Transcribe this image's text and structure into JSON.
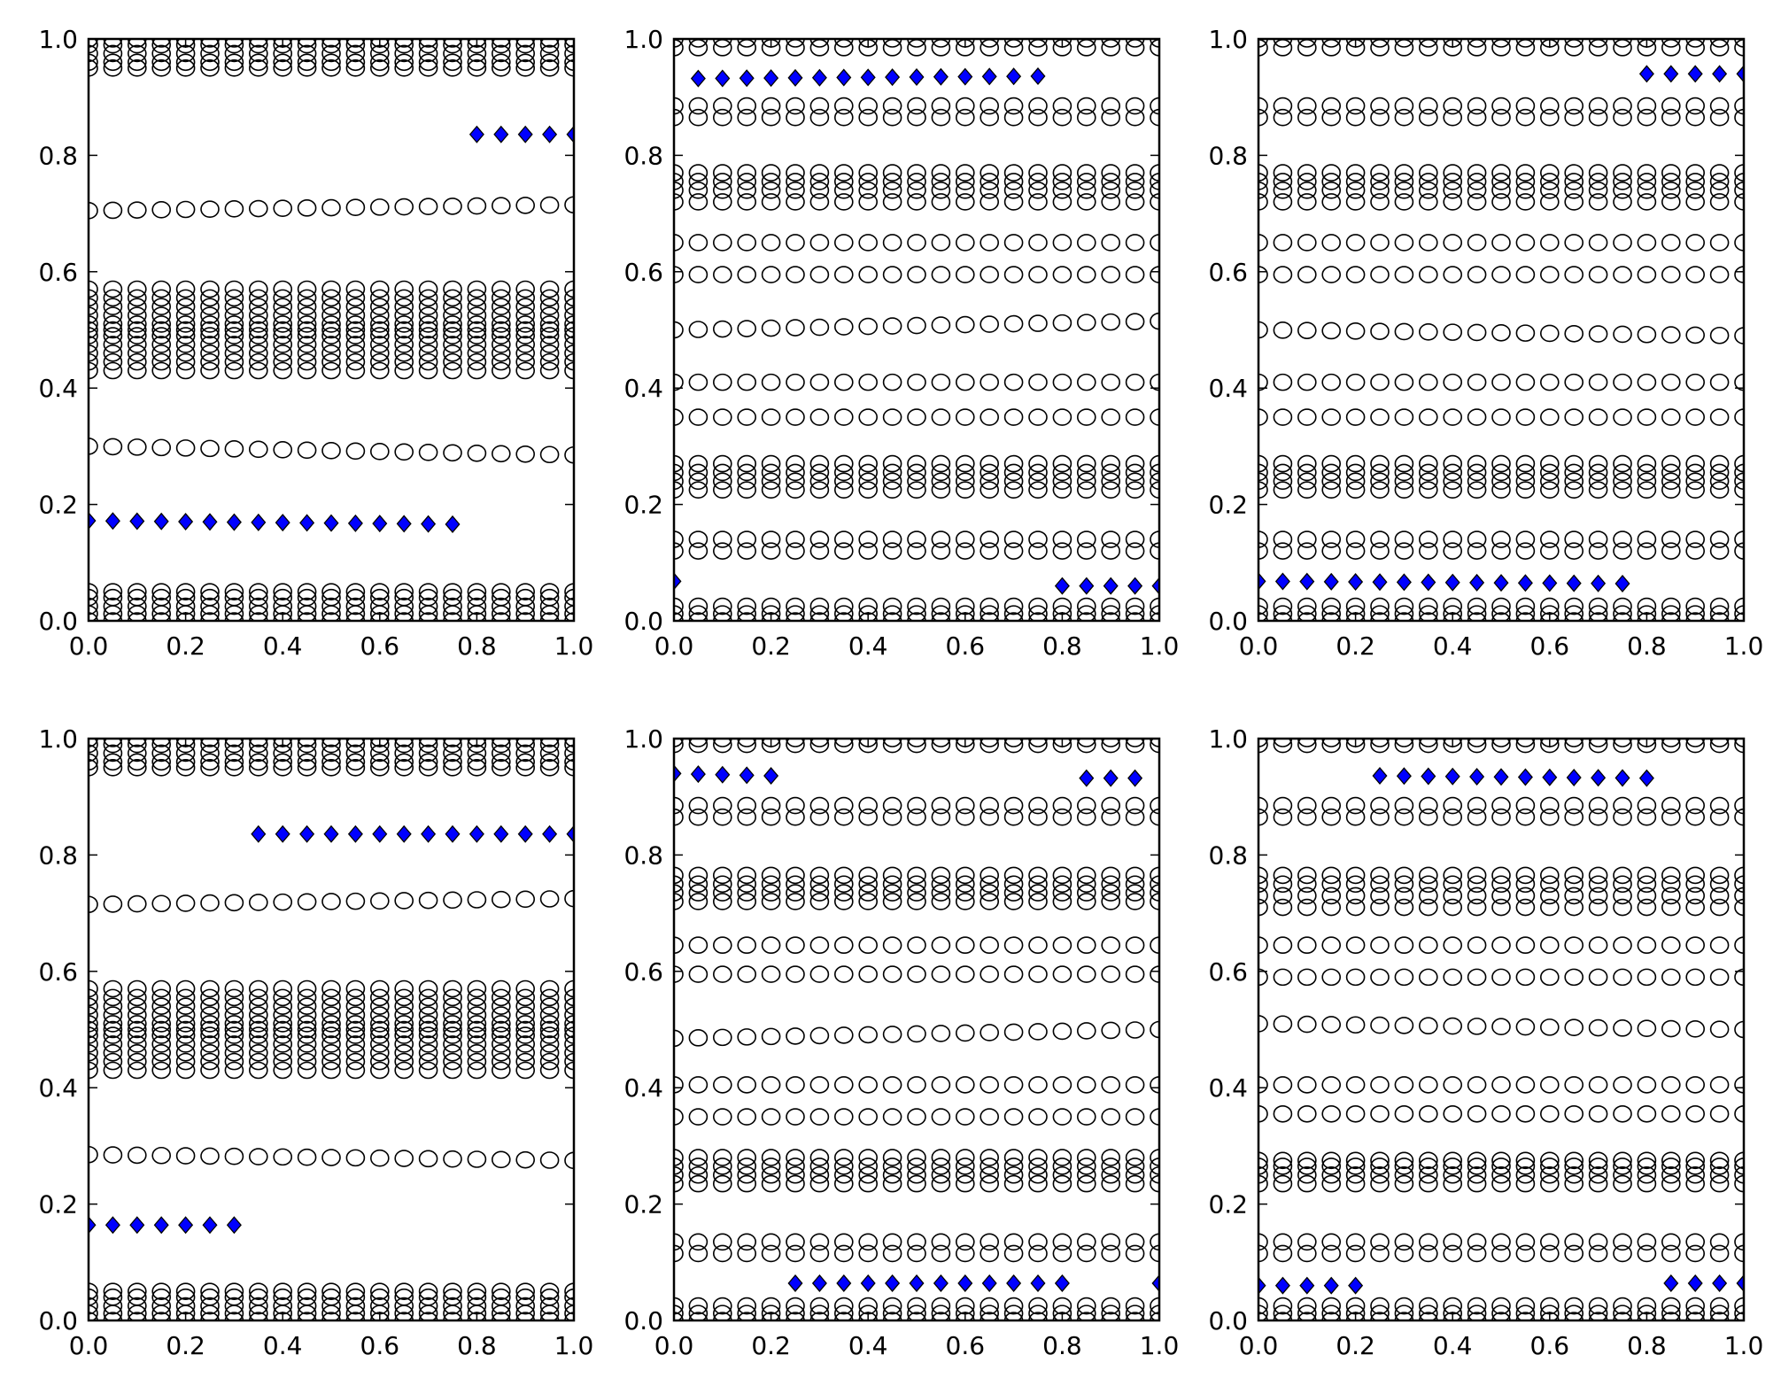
{
  "colors": {
    "background": "#ffffff",
    "axes": "#000000",
    "open_circle_edge": "#000000",
    "diamond_fill": "#0000ff",
    "diamond_edge": "#000000"
  },
  "chart_data": [
    {
      "type": "scatter",
      "title": "",
      "xlabel": "",
      "ylabel": "",
      "xlim": [
        0,
        1
      ],
      "ylim": [
        0,
        1
      ],
      "xticks": [
        "0.0",
        "0.2",
        "0.4",
        "0.6",
        "0.8",
        "1.0"
      ],
      "yticks": [
        "0.0",
        "0.2",
        "0.4",
        "0.6",
        "0.8",
        "1.0"
      ],
      "grid": false,
      "legend": "none",
      "x": [
        0,
        0.05,
        0.1,
        0.15,
        0.2,
        0.25,
        0.3,
        0.35,
        0.4,
        0.45,
        0.5,
        0.55,
        0.6,
        0.65,
        0.7,
        0.75,
        0.8,
        0.85,
        0.9,
        0.95,
        1.0
      ],
      "series": [
        {
          "marker": "open-circle",
          "levels": [
            0.0,
            0.012,
            0.025,
            0.04,
            0.05,
            0.43,
            0.445,
            0.46,
            0.475,
            0.49,
            0.5,
            0.51,
            0.525,
            0.54,
            0.555,
            0.57,
            0.95,
            0.96,
            0.975,
            0.99,
            1.0
          ],
          "drift": [
            {
              "start": 0.705,
              "end": 0.715
            },
            {
              "start": 0.3,
              "end": 0.285
            }
          ]
        },
        {
          "marker": "diamond",
          "segments": [
            {
              "x_start": 0.0,
              "x_end": 0.75,
              "y_start": 0.172,
              "y_end": 0.166
            },
            {
              "x_start": 0.8,
              "x_end": 1.0,
              "y_start": 0.836,
              "y_end": 0.836
            }
          ]
        }
      ]
    },
    {
      "type": "scatter",
      "title": "",
      "xlabel": "",
      "ylabel": "",
      "xlim": [
        0,
        1
      ],
      "ylim": [
        0,
        1
      ],
      "xticks": [
        "0.0",
        "0.2",
        "0.4",
        "0.6",
        "0.8",
        "1.0"
      ],
      "yticks": [
        "0.0",
        "0.2",
        "0.4",
        "0.6",
        "0.8",
        "1.0"
      ],
      "grid": false,
      "legend": "none",
      "x": [
        0,
        0.05,
        0.1,
        0.15,
        0.2,
        0.25,
        0.3,
        0.35,
        0.4,
        0.45,
        0.5,
        0.55,
        0.6,
        0.65,
        0.7,
        0.75,
        0.8,
        0.85,
        0.9,
        0.95,
        1.0
      ],
      "series": [
        {
          "marker": "open-circle",
          "levels": [
            0.0,
            0.012,
            0.025,
            0.12,
            0.14,
            0.225,
            0.24,
            0.255,
            0.27,
            0.35,
            0.41,
            0.595,
            0.65,
            0.72,
            0.74,
            0.755,
            0.77,
            0.865,
            0.885,
            0.985,
            1.0
          ],
          "drift": [
            {
              "start": 0.5,
              "end": 0.515
            }
          ]
        },
        {
          "marker": "diamond",
          "segments": [
            {
              "x_start": 0.0,
              "x_end": 0.0,
              "y_start": 0.068,
              "y_end": 0.068
            },
            {
              "x_start": 0.05,
              "x_end": 0.75,
              "y_start": 0.932,
              "y_end": 0.936
            },
            {
              "x_start": 0.8,
              "x_end": 1.0,
              "y_start": 0.06,
              "y_end": 0.06
            }
          ]
        }
      ]
    },
    {
      "type": "scatter",
      "title": "",
      "xlabel": "",
      "ylabel": "",
      "xlim": [
        0,
        1
      ],
      "ylim": [
        0,
        1
      ],
      "xticks": [
        "0.0",
        "0.2",
        "0.4",
        "0.6",
        "0.8",
        "1.0"
      ],
      "yticks": [
        "0.0",
        "0.2",
        "0.4",
        "0.6",
        "0.8",
        "1.0"
      ],
      "grid": false,
      "legend": "none",
      "x": [
        0,
        0.05,
        0.1,
        0.15,
        0.2,
        0.25,
        0.3,
        0.35,
        0.4,
        0.45,
        0.5,
        0.55,
        0.6,
        0.65,
        0.7,
        0.75,
        0.8,
        0.85,
        0.9,
        0.95,
        1.0
      ],
      "series": [
        {
          "marker": "open-circle",
          "levels": [
            0.0,
            0.012,
            0.025,
            0.12,
            0.14,
            0.225,
            0.24,
            0.255,
            0.27,
            0.35,
            0.41,
            0.595,
            0.65,
            0.72,
            0.74,
            0.755,
            0.77,
            0.865,
            0.885,
            0.985,
            1.0
          ],
          "drift": [
            {
              "start": 0.5,
              "end": 0.49
            }
          ]
        },
        {
          "marker": "diamond",
          "segments": [
            {
              "x_start": 0.0,
              "x_end": 0.75,
              "y_start": 0.068,
              "y_end": 0.064
            },
            {
              "x_start": 0.8,
              "x_end": 1.0,
              "y_start": 0.94,
              "y_end": 0.94
            }
          ]
        }
      ]
    },
    {
      "type": "scatter",
      "title": "",
      "xlabel": "",
      "ylabel": "",
      "xlim": [
        0,
        1
      ],
      "ylim": [
        0,
        1
      ],
      "xticks": [
        "0.0",
        "0.2",
        "0.4",
        "0.6",
        "0.8",
        "1.0"
      ],
      "yticks": [
        "0.0",
        "0.2",
        "0.4",
        "0.6",
        "0.8",
        "1.0"
      ],
      "grid": false,
      "legend": "none",
      "x": [
        0,
        0.05,
        0.1,
        0.15,
        0.2,
        0.25,
        0.3,
        0.35,
        0.4,
        0.45,
        0.5,
        0.55,
        0.6,
        0.65,
        0.7,
        0.75,
        0.8,
        0.85,
        0.9,
        0.95,
        1.0
      ],
      "series": [
        {
          "marker": "open-circle",
          "levels": [
            0.0,
            0.012,
            0.025,
            0.04,
            0.05,
            0.43,
            0.445,
            0.46,
            0.475,
            0.49,
            0.5,
            0.51,
            0.525,
            0.54,
            0.555,
            0.57,
            0.95,
            0.96,
            0.975,
            0.99,
            1.0
          ],
          "drift": [
            {
              "start": 0.715,
              "end": 0.725
            },
            {
              "start": 0.285,
              "end": 0.275
            }
          ]
        },
        {
          "marker": "diamond",
          "segments": [
            {
              "x_start": 0.0,
              "x_end": 0.3,
              "y_start": 0.164,
              "y_end": 0.164
            },
            {
              "x_start": 0.35,
              "x_end": 1.0,
              "y_start": 0.836,
              "y_end": 0.836
            }
          ]
        }
      ]
    },
    {
      "type": "scatter",
      "title": "",
      "xlabel": "",
      "ylabel": "",
      "xlim": [
        0,
        1
      ],
      "ylim": [
        0,
        1
      ],
      "xticks": [
        "0.0",
        "0.2",
        "0.4",
        "0.6",
        "0.8",
        "1.0"
      ],
      "yticks": [
        "0.0",
        "0.2",
        "0.4",
        "0.6",
        "0.8",
        "1.0"
      ],
      "grid": false,
      "legend": "none",
      "x": [
        0,
        0.05,
        0.1,
        0.15,
        0.2,
        0.25,
        0.3,
        0.35,
        0.4,
        0.45,
        0.5,
        0.55,
        0.6,
        0.65,
        0.7,
        0.75,
        0.8,
        0.85,
        0.9,
        0.95,
        1.0
      ],
      "series": [
        {
          "marker": "open-circle",
          "levels": [
            0.0,
            0.012,
            0.025,
            0.115,
            0.135,
            0.235,
            0.25,
            0.265,
            0.28,
            0.35,
            0.405,
            0.595,
            0.645,
            0.72,
            0.735,
            0.75,
            0.765,
            0.865,
            0.885,
            0.99,
            1.0
          ],
          "drift": [
            {
              "start": 0.485,
              "end": 0.5
            }
          ]
        },
        {
          "marker": "diamond",
          "segments": [
            {
              "x_start": 0.0,
              "x_end": 0.2,
              "y_start": 0.94,
              "y_end": 0.936
            },
            {
              "x_start": 0.25,
              "x_end": 0.8,
              "y_start": 0.064,
              "y_end": 0.064
            },
            {
              "x_start": 0.85,
              "x_end": 0.95,
              "y_start": 0.932,
              "y_end": 0.932
            },
            {
              "x_start": 1.0,
              "x_end": 1.0,
              "y_start": 0.064,
              "y_end": 0.064
            }
          ]
        }
      ]
    },
    {
      "type": "scatter",
      "title": "",
      "xlabel": "",
      "ylabel": "",
      "xlim": [
        0,
        1
      ],
      "ylim": [
        0,
        1
      ],
      "xticks": [
        "0.0",
        "0.2",
        "0.4",
        "0.6",
        "0.8",
        "1.0"
      ],
      "yticks": [
        "0.0",
        "0.2",
        "0.4",
        "0.6",
        "0.8",
        "1.0"
      ],
      "grid": false,
      "legend": "none",
      "x": [
        0,
        0.05,
        0.1,
        0.15,
        0.2,
        0.25,
        0.3,
        0.35,
        0.4,
        0.45,
        0.5,
        0.55,
        0.6,
        0.65,
        0.7,
        0.75,
        0.8,
        0.85,
        0.9,
        0.95,
        1.0
      ],
      "series": [
        {
          "marker": "open-circle",
          "levels": [
            0.0,
            0.012,
            0.025,
            0.115,
            0.135,
            0.235,
            0.25,
            0.265,
            0.275,
            0.355,
            0.405,
            0.59,
            0.645,
            0.71,
            0.73,
            0.75,
            0.765,
            0.865,
            0.885,
            0.99,
            1.0
          ],
          "drift": [
            {
              "start": 0.51,
              "end": 0.5
            }
          ]
        },
        {
          "marker": "diamond",
          "segments": [
            {
              "x_start": 0.0,
              "x_end": 0.2,
              "y_start": 0.06,
              "y_end": 0.06
            },
            {
              "x_start": 0.25,
              "x_end": 0.8,
              "y_start": 0.936,
              "y_end": 0.932
            },
            {
              "x_start": 0.85,
              "x_end": 1.0,
              "y_start": 0.064,
              "y_end": 0.064
            }
          ]
        }
      ]
    }
  ]
}
